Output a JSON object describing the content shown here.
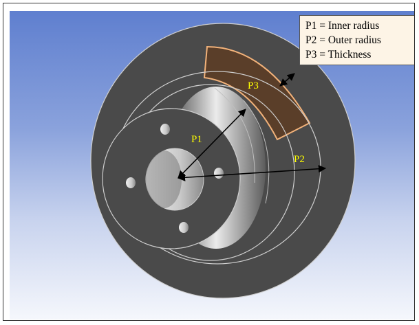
{
  "legend": {
    "items": [
      "P1 = Inner radius",
      "P2 = Outer radius",
      "P3 = Thickness"
    ]
  },
  "labels": {
    "p1": "P1",
    "p2": "P2",
    "p3": "P3"
  },
  "colors": {
    "background_top": "#5f7fcf",
    "background_bottom": "#f5f7fc",
    "part_face": "#4a4a4a",
    "part_edge_light": "#cfcfcf",
    "highlight_region": "#5a3e29",
    "highlight_border": "#f2b27a",
    "label_text": "#ffff00",
    "legend_background": "#fdf4e6"
  }
}
